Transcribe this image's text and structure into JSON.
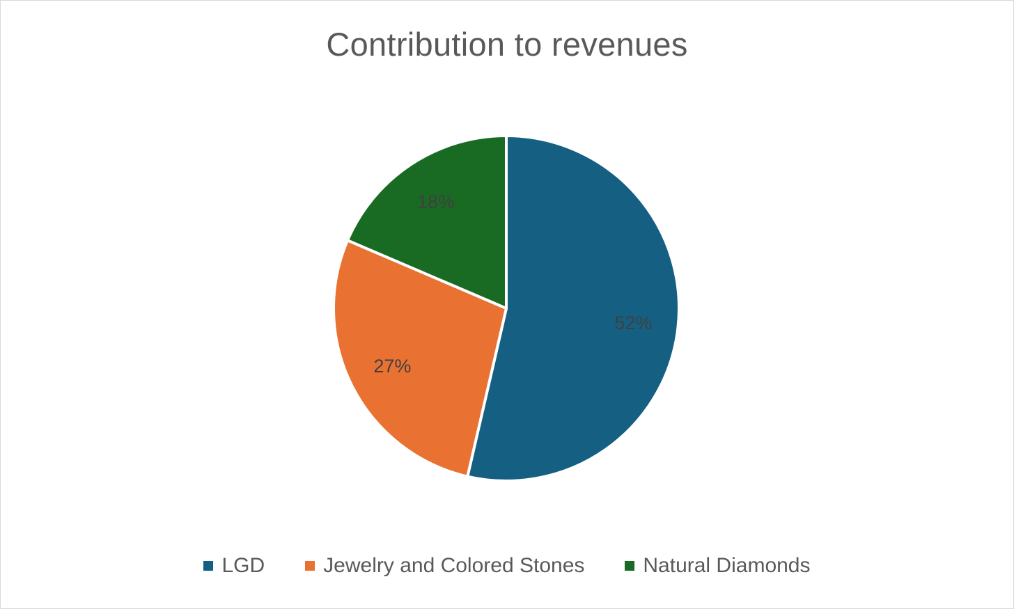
{
  "chart_data": {
    "type": "pie",
    "title": "Contribution to revenues",
    "categories": [
      "LGD",
      "Jewelry and Colored Stones",
      "Natural Diamonds"
    ],
    "values": [
      52,
      27,
      18
    ],
    "labels": [
      "52%",
      "27%",
      "18%"
    ],
    "colors": [
      "#156082",
      "#E97132",
      "#196B24"
    ],
    "legend_position": "bottom"
  }
}
